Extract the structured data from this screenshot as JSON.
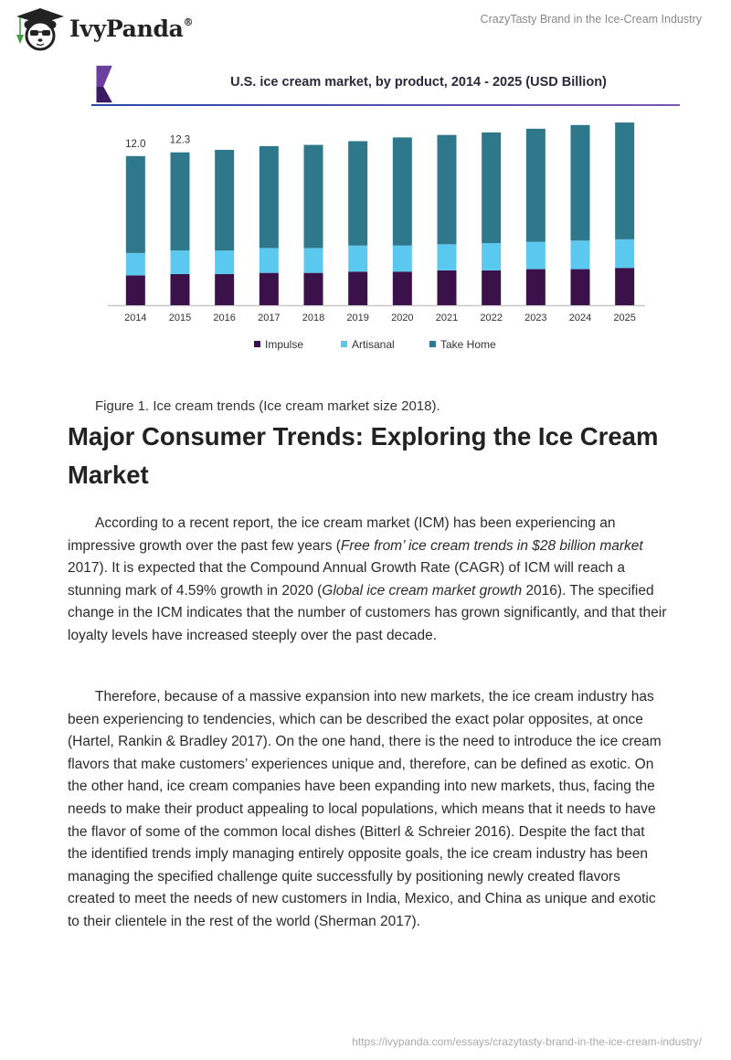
{
  "header": {
    "logo_text": "IvyPanda",
    "logo_mark": "®",
    "logo_icon": "panda-graduate-icon",
    "document_title": "CrazyTasty Brand in the Ice-Cream Industry"
  },
  "figure": {
    "caption": "Figure 1. Ice cream trends (Ice cream market size 2018)."
  },
  "chart_data": {
    "type": "bar",
    "stacked": true,
    "title": "U.S. ice cream market, by product, 2014 - 2025 (USD Billion)",
    "xlabel": "",
    "ylabel": "",
    "categories": [
      "2014",
      "2015",
      "2016",
      "2017",
      "2018",
      "2019",
      "2020",
      "2021",
      "2022",
      "2023",
      "2024",
      "2025"
    ],
    "series": [
      {
        "name": "Impulse",
        "color": "#3a1148",
        "values": [
          2.4,
          2.5,
          2.5,
          2.6,
          2.6,
          2.7,
          2.7,
          2.8,
          2.8,
          2.9,
          2.9,
          3.0
        ]
      },
      {
        "name": "Artisanal",
        "color": "#5bc8ef",
        "values": [
          1.8,
          1.9,
          1.9,
          2.0,
          2.0,
          2.1,
          2.1,
          2.1,
          2.2,
          2.2,
          2.3,
          2.3
        ]
      },
      {
        "name": "Take Home",
        "color": "#2f778a",
        "values": [
          7.8,
          7.9,
          8.1,
          8.2,
          8.3,
          8.4,
          8.7,
          8.8,
          8.9,
          9.1,
          9.3,
          9.4
        ]
      }
    ],
    "data_labels": [
      {
        "category": "2014",
        "text": "12.0"
      },
      {
        "category": "2015",
        "text": "12.3"
      }
    ],
    "ylim": [
      0,
      15.5
    ],
    "grid": false,
    "legend_position": "bottom-center"
  },
  "article": {
    "heading": "Major Consumer Trends: Exploring the Ice Cream Market",
    "p1": [
      {
        "t": "According to a recent report, the ice cream market (ICM) has been experiencing an impressive growth over the past few years ("
      },
      {
        "t": "Free from’ ice cream trends in $28 billion market",
        "i": true
      },
      {
        "t": " 2017). It is expected that the Compound Annual Growth Rate (CAGR) of ICM will reach a stunning mark of 4.59% growth in 2020 ("
      },
      {
        "t": "Global ice cream market growth",
        "i": true
      },
      {
        "t": " 2016). The specified change in the ICM indicates that the number of customers has grown significantly, and that their loyalty levels have increased steeply over the past decade."
      }
    ],
    "p2": "Therefore, because of a massive expansion into new markets, the ice cream industry has been experiencing to tendencies, which can be described the exact polar opposites, at once (Hartel, Rankin & Bradley 2017). On the one hand, there is the need to introduce the ice cream flavors that make customers’ experiences unique and, therefore, can be defined as exotic. On the other hand, ice cream companies have been expanding into new markets, thus, facing the needs to make their product appealing to local populations, which means that it needs to have the flavor of some of the common local dishes (Bitterl & Schreier 2016). Despite the fact that the identified trends imply managing entirely opposite goals, the ice cream industry has been managing the specified challenge quite successfully by positioning newly created flavors created to meet the needs of new customers in India, Mexico, and China as unique and exotic to their clientele in the rest of the world (Sherman 2017)."
  },
  "footer": {
    "url": "https://ivypanda.com/essays/crazytasty-brand-in-the-ice-cream-industry/"
  }
}
